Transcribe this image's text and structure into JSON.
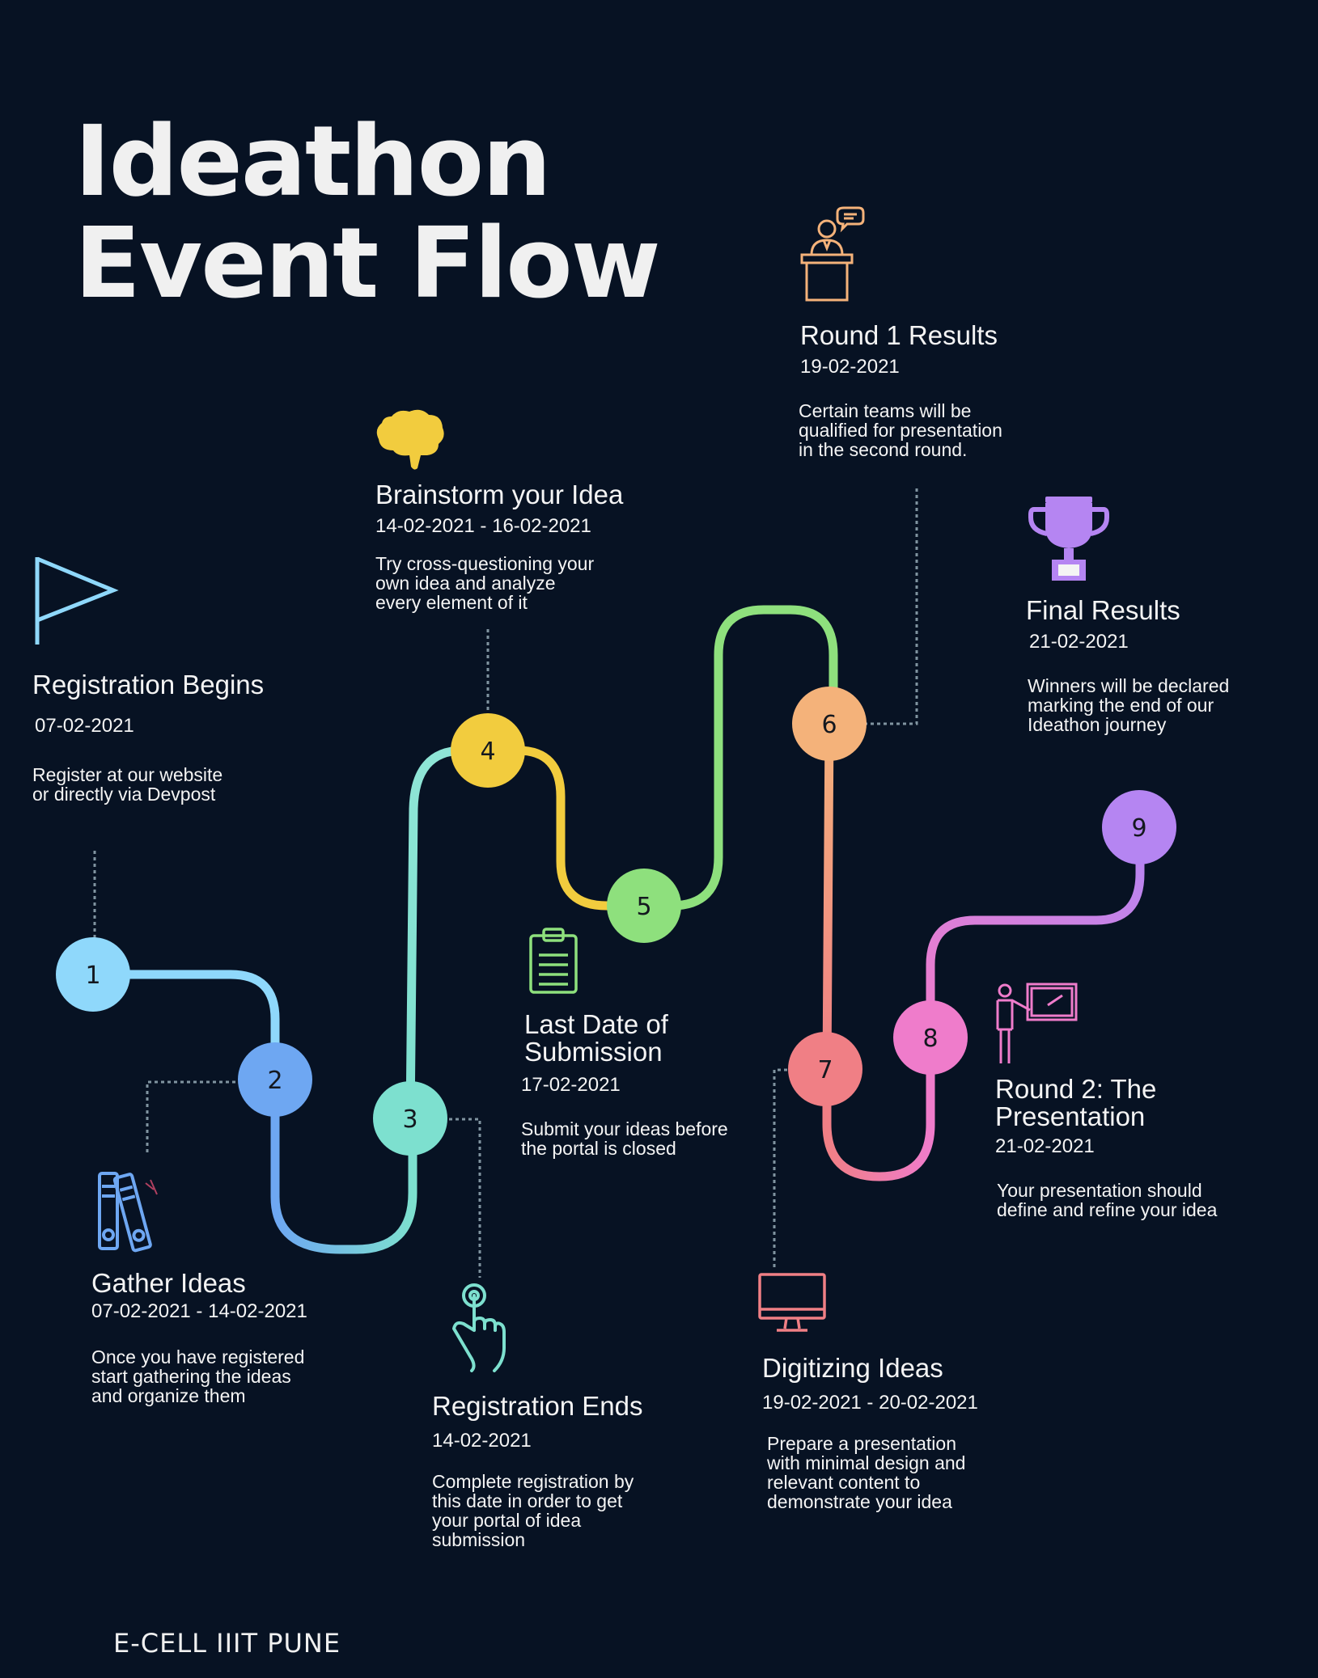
{
  "title": {
    "line1": "Ideathon",
    "line2": "Event Flow"
  },
  "nodes": [
    "1",
    "2",
    "3",
    "4",
    "5",
    "6",
    "7",
    "8",
    "9"
  ],
  "steps": [
    {
      "heading": "Registration Begins",
      "date": "07-02-2021",
      "text": "Register at our website\nor directly via Devpost"
    },
    {
      "heading": "Gather Ideas",
      "date": "07-02-2021 - 14-02-2021",
      "text": "Once you have registered\nstart gathering the ideas\nand organize them"
    },
    {
      "heading": "Registration Ends",
      "date": "14-02-2021",
      "text": "Complete registration by\nthis date in order to get\nyour portal of idea\nsubmission"
    },
    {
      "heading": "Brainstorm your Idea",
      "date": "14-02-2021 - 16-02-2021",
      "text": "Try cross-questioning your\nown idea and analyze\nevery element of it"
    },
    {
      "heading": "Last Date of\nSubmission",
      "date": "17-02-2021",
      "text": "Submit your ideas before\nthe portal is closed"
    },
    {
      "heading": "Round 1 Results",
      "date": "19-02-2021",
      "text": "Certain teams will be\nqualified for presentation\nin the second round."
    },
    {
      "heading": "Digitizing Ideas",
      "date": "19-02-2021 - 20-02-2021",
      "text": "Prepare a presentation\nwith minimal design and\nrelevant content to\ndemonstrate your idea"
    },
    {
      "heading": "Round 2: The\nPresentation",
      "date": "21-02-2021",
      "text": "Your presentation should\ndefine and refine your idea"
    },
    {
      "heading": "Final Results",
      "date": "21-02-2021",
      "text": "Winners will be declared\nmarking the end of our\nIdeathon journey"
    }
  ],
  "colors": {
    "background": "#071223",
    "n1": "#8fd8fb",
    "n2": "#6ea7f2",
    "n3": "#7de0cf",
    "n4": "#f2cc3e",
    "n5": "#8ee07d",
    "n6": "#f4b27a",
    "n7": "#f07f85",
    "n8": "#ef7ccb",
    "n9": "#b585f2",
    "connector": "#8094a0"
  },
  "icons": [
    "flag-icon",
    "binders-icon",
    "pointer-hand-icon",
    "brain-icon",
    "clipboard-icon",
    "speaker-podium-icon",
    "monitor-icon",
    "presenter-board-icon",
    "trophy-icon"
  ],
  "footer": "E-CELL IIIT PUNE"
}
